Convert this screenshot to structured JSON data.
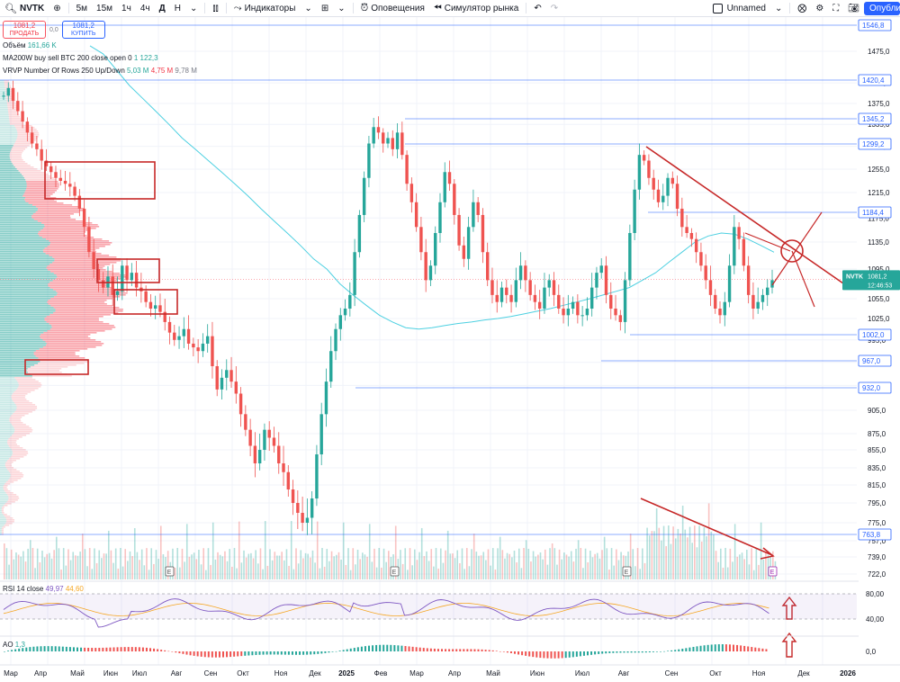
{
  "toolbar": {
    "symbol": "NVTK",
    "intervals": [
      "5м",
      "15м",
      "1ч",
      "4ч",
      "Д",
      "Н"
    ],
    "active_interval": "Д",
    "indicators_label": "Индикаторы",
    "alerts_label": "Оповещения",
    "replay_label": "Симулятор рынка",
    "layout_name": "Unnamed",
    "publish_label": "Опублико"
  },
  "legend": {
    "sell_price": "1081,2",
    "sell_label": "ПРОДАТЬ",
    "spread": "0,0",
    "buy_price": "1081,2",
    "buy_label": "КУПИТЬ",
    "volume_label": "Объём",
    "volume_value": "161,66 K",
    "ma_label": "MA200W buy sell BTC 200 close open 0",
    "ma_value": "1 122,3",
    "vrvp_label": "VRVP Number Of Rows 250 Up/Down",
    "vrvp_up": "5,03 M",
    "vrvp_down": "4,75 M",
    "vrvp_total": "9,78 M",
    "rsi_label": "RSI 14 close",
    "rsi_value": "49,97",
    "rsi_ma": "44,60",
    "ao_label": "AO",
    "ao_value": "1,3"
  },
  "chart_data": {
    "type": "candlestick",
    "symbol": "NVTK",
    "last_price": 1081.2,
    "last_price_label": "1081,2",
    "countdown": "12:46:53",
    "y_ticks": [
      1475.0,
      1415.0,
      1375.0,
      1335.0,
      1295.0,
      1255.0,
      1215.0,
      1175.0,
      1135.0,
      1095.0,
      1055.0,
      1025.0,
      995.0,
      965.0,
      935.0,
      905.0,
      875.0,
      855.0,
      835.0,
      815.0,
      795.0,
      775.0,
      757.0,
      739.0,
      722.0
    ],
    "y_tick_labels": [
      "1475,0",
      "1415,0",
      "1375,0",
      "1335,0",
      "1295,0",
      "1255,0",
      "1215,0",
      "1175,0",
      "1135,0",
      "1095,0",
      "1055,0",
      "1025,0",
      "995,0",
      "965,0",
      "935,0",
      "905,0",
      "875,0",
      "855,0",
      "835,0",
      "815,0",
      "795,0",
      "775,0",
      "757,0",
      "739,0",
      "722,0"
    ],
    "x_labels": [
      "Мар",
      "Апр",
      "Май",
      "Июн",
      "Июл",
      "Авг",
      "Сен",
      "Окт",
      "Ноя",
      "Дек",
      "2025",
      "Фев",
      "Мар",
      "Апр",
      "Май",
      "Июн",
      "Июл",
      "Авг",
      "Сен",
      "Окт",
      "Ноя",
      "Дек",
      "2026"
    ],
    "horizontal_levels": [
      {
        "value": 1546.8,
        "label": "1546,8"
      },
      {
        "value": 1420.4,
        "label": "1420,4"
      },
      {
        "value": 1345.2,
        "label": "1345,2"
      },
      {
        "value": 1299.2,
        "label": "1299,2"
      },
      {
        "value": 1184.4,
        "label": "1184,4"
      },
      {
        "value": 1002.0,
        "label": "1002,0"
      },
      {
        "value": 967.0,
        "label": "967,0"
      },
      {
        "value": 932.0,
        "label": "932,0"
      },
      {
        "value": 763.8,
        "label": "763,8"
      }
    ],
    "price_path": [
      1390,
      1405,
      1380,
      1360,
      1340,
      1320,
      1300,
      1290,
      1270,
      1260,
      1250,
      1240,
      1235,
      1230,
      1225,
      1210,
      1190,
      1160,
      1120,
      1095,
      1080,
      1070,
      1085,
      1060,
      1065,
      1100,
      1080,
      1090,
      1070,
      1065,
      1050,
      1040,
      1045,
      1035,
      1020,
      1005,
      995,
      1000,
      1010,
      990,
      985,
      980,
      990,
      1000,
      960,
      930,
      945,
      955,
      940,
      925,
      900,
      880,
      860,
      840,
      855,
      880,
      870,
      860,
      840,
      830,
      810,
      795,
      785,
      775,
      780,
      800,
      850,
      900,
      940,
      980,
      1010,
      1030,
      1040,
      1060,
      1120,
      1180,
      1240,
      1300,
      1330,
      1320,
      1300,
      1310,
      1290,
      1320,
      1280,
      1230,
      1200,
      1160,
      1120,
      1080,
      1100,
      1150,
      1200,
      1250,
      1230,
      1180,
      1130,
      1110,
      1160,
      1200,
      1180,
      1120,
      1080,
      1060,
      1050,
      1070,
      1060,
      1050,
      1080,
      1100,
      1080,
      1060,
      1050,
      1040,
      1070,
      1080,
      1060,
      1040,
      1030,
      1040,
      1050,
      1030,
      1030,
      1040,
      1070,
      1090,
      1100,
      1060,
      1040,
      1030,
      1020,
      1080,
      1150,
      1220,
      1280,
      1270,
      1240,
      1220,
      1200,
      1210,
      1240,
      1230,
      1190,
      1160,
      1150,
      1140,
      1120,
      1100,
      1080,
      1060,
      1040,
      1030,
      1050,
      1100,
      1160,
      1140,
      1100,
      1060,
      1040,
      1050,
      1060,
      1070,
      1080
    ],
    "ma200w_value": 1122.3,
    "ma_path": [
      1490,
      1470,
      1440,
      1410,
      1385,
      1360,
      1335,
      1310,
      1290,
      1270,
      1250,
      1230,
      1210,
      1190,
      1170,
      1150,
      1130,
      1110,
      1095,
      1075,
      1060,
      1045,
      1030,
      1020,
      1012,
      1010,
      1012,
      1015,
      1018,
      1020,
      1023,
      1025,
      1028,
      1032,
      1036,
      1040,
      1045,
      1050,
      1055,
      1060,
      1065,
      1070,
      1080,
      1090,
      1105,
      1120,
      1135,
      1145,
      1150,
      1148,
      1140,
      1130,
      1120
    ],
    "rsi": {
      "value": 49.97,
      "ma": 44.6,
      "levels": [
        80,
        40
      ],
      "tick_labels": [
        "80,00",
        "40,00"
      ]
    },
    "ao": {
      "value": 1.3,
      "tick_label": "0,0"
    },
    "earnings_marker": "E"
  }
}
